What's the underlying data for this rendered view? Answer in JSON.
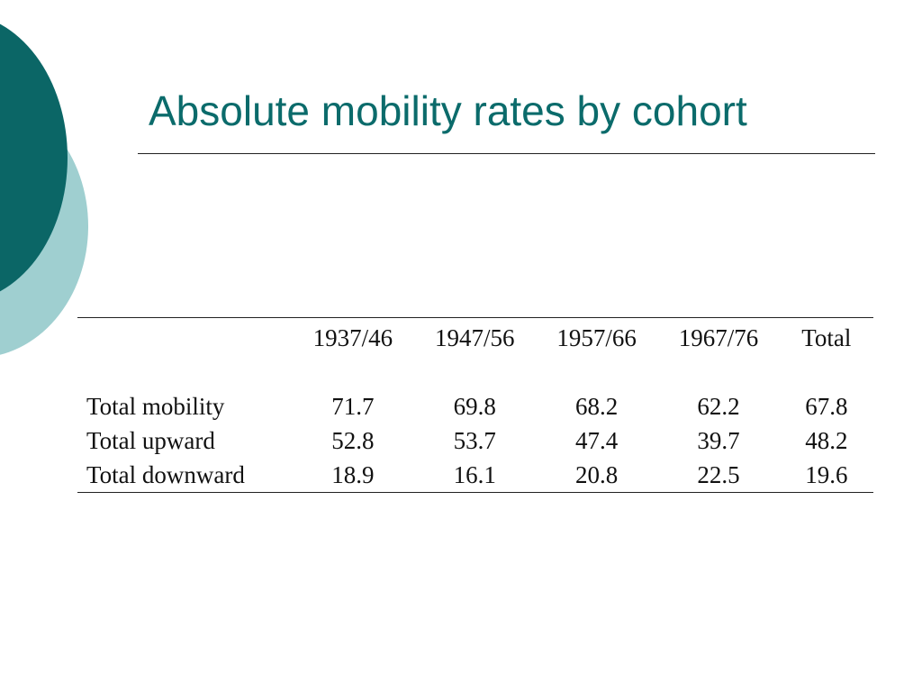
{
  "slide": {
    "title": "Absolute mobility rates by cohort"
  },
  "theme": {
    "accent_dark": "#0b6666",
    "accent_light": "#9fcfd0",
    "title_color": "#0b6b6b"
  },
  "table": {
    "columns": [
      "1937/46",
      "1947/56",
      "1957/66",
      "1967/76",
      "Total"
    ],
    "rows": [
      {
        "label": "Total mobility",
        "values": [
          "71.7",
          "69.8",
          "68.2",
          "62.2",
          "67.8"
        ]
      },
      {
        "label": "Total upward",
        "values": [
          "52.8",
          "53.7",
          "47.4",
          "39.7",
          "48.2"
        ]
      },
      {
        "label": "Total downward",
        "values": [
          "18.9",
          "16.1",
          "20.8",
          "22.5",
          "19.6"
        ]
      }
    ]
  }
}
